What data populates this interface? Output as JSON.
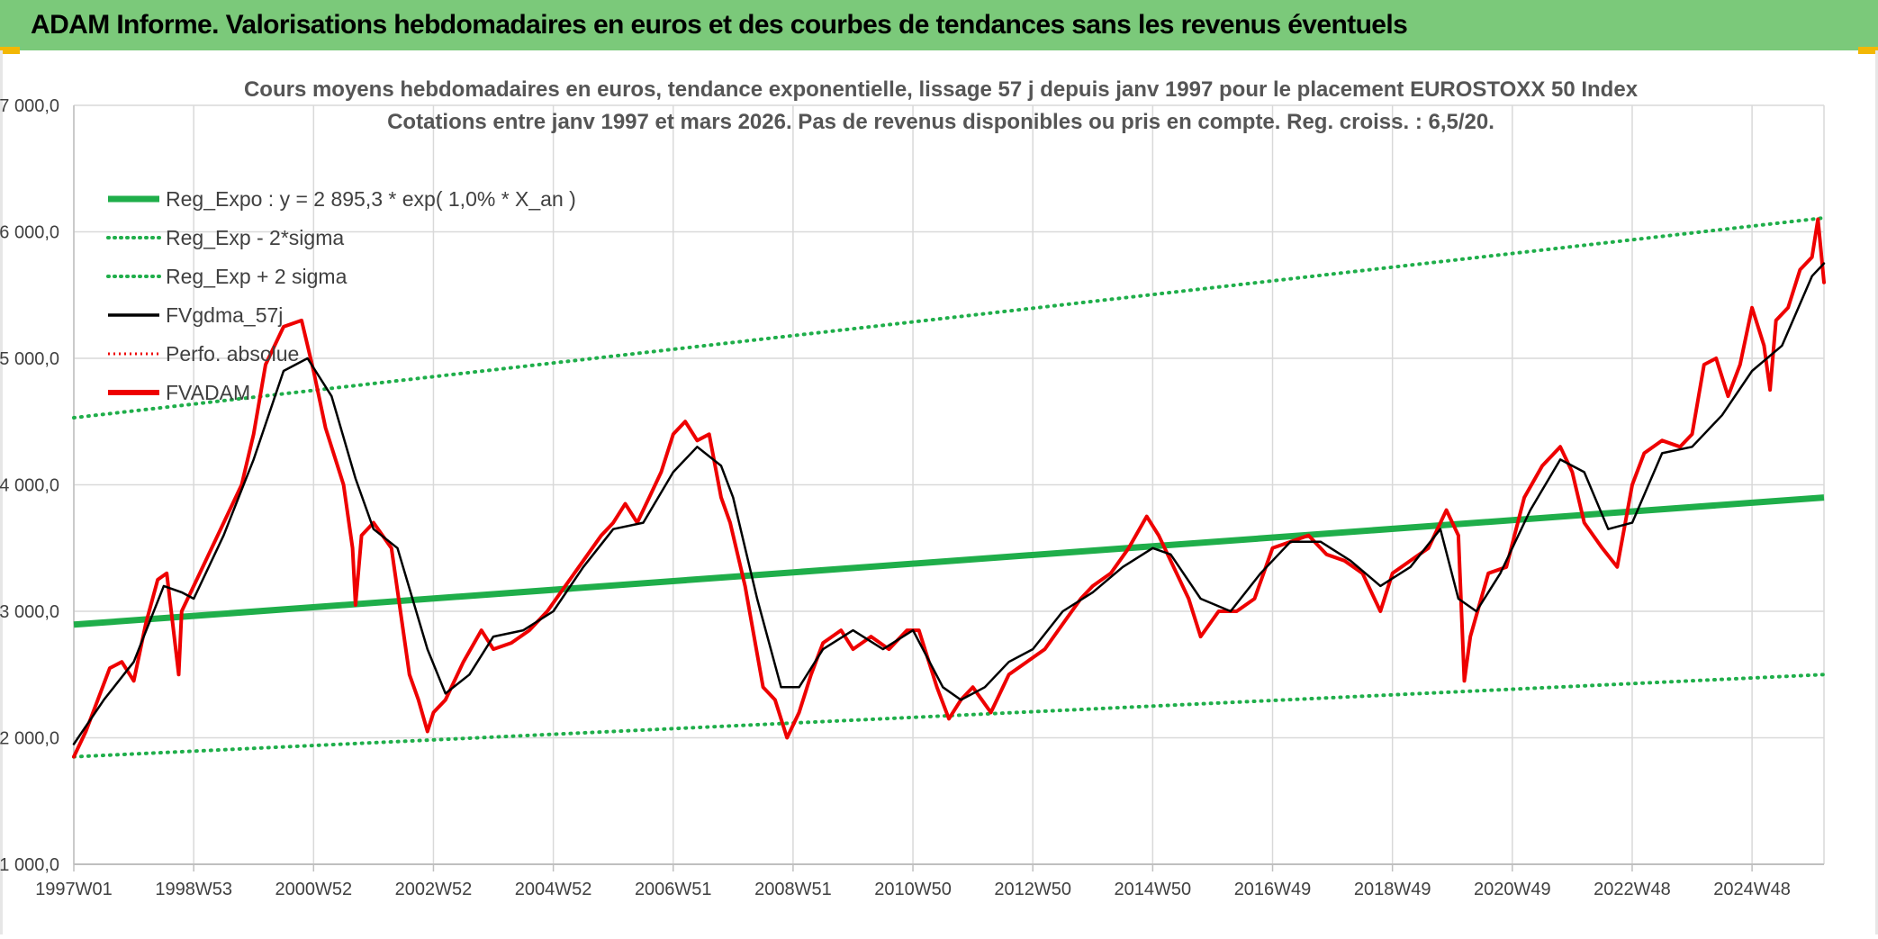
{
  "banner": {
    "title": "ADAM Informe. Valorisations hebdomadaires en euros et des courbes de tendances sans les revenus éventuels"
  },
  "colors": {
    "banner_bg": "#7bc97a",
    "corner_accent": "#f2b705",
    "trend_green": "#1fae4a",
    "dotted_green": "#1fae4a",
    "fvadam_red": "#ee0000",
    "fvgdma_black": "#000000",
    "perfo_red": "#ee0000",
    "grid": "#d9d9d9"
  },
  "chart_data": {
    "type": "line",
    "title_lines": [
      "Cours moyens hebdomadaires en euros, tendance exponentielle, lissage 57 j depuis janv 1997 pour le placement EUROSTOXX 50 Index",
      "Cotations entre janv 1997 et mars 2026. Pas de revenus disponibles ou pris en compte. Reg. croiss. : 6,5/20."
    ],
    "xlim": [
      1997.0,
      2026.2
    ],
    "ylim": [
      1000,
      7000
    ],
    "yticks": [
      1000,
      2000,
      3000,
      4000,
      5000,
      6000,
      7000
    ],
    "ytick_labels": [
      "1 000,0",
      "2 000,0",
      "3 000,0",
      "4 000,0",
      "5 000,0",
      "6 000,0",
      "7 000,0"
    ],
    "xtick_labels": [
      "1997W01",
      "1998W53",
      "2000W52",
      "2002W52",
      "2004W52",
      "2006W51",
      "2008W51",
      "2010W50",
      "2012W50",
      "2014W50",
      "2016W49",
      "2018W49",
      "2020W49",
      "2022W48",
      "2024W48"
    ],
    "xtick_positions": [
      1997.0,
      1999.0,
      2001.0,
      2003.0,
      2005.0,
      2007.0,
      2009.0,
      2011.0,
      2013.0,
      2015.0,
      2017.0,
      2019.0,
      2021.0,
      2023.0,
      2025.0
    ],
    "grid": true,
    "legend_position": "top-left",
    "legend": [
      {
        "label": "Reg_Expo : y = 2 895,3 * exp( 1,0% *  X_an )",
        "style": "solid-thick",
        "color": "#1fae4a"
      },
      {
        "label": "Reg_Exp - 2*sigma",
        "style": "dotted",
        "color": "#1fae4a"
      },
      {
        "label": "Reg_Exp + 2 sigma",
        "style": "dotted",
        "color": "#1fae4a"
      },
      {
        "label": "FVgdma_57j",
        "style": "solid",
        "color": "#000000"
      },
      {
        "label": "Perfo. absolue",
        "style": "dotted",
        "color": "#ee0000"
      },
      {
        "label": "FVADAM",
        "style": "solid-thick",
        "color": "#ee0000"
      }
    ],
    "series": [
      {
        "name": "Reg_Expo : y = 2 895,3 * exp( 1,0% *  X_an )",
        "x": [
          1997.0,
          2026.2
        ],
        "y": [
          2895,
          3900
        ]
      },
      {
        "name": "Reg_Exp - 2*sigma",
        "x": [
          1997.0,
          2026.2
        ],
        "y": [
          1850,
          2500
        ]
      },
      {
        "name": "Reg_Exp + 2 sigma",
        "x": [
          1997.0,
          2026.2
        ],
        "y": [
          4530,
          6110
        ]
      },
      {
        "name": "FVADAM",
        "x": [
          1997.0,
          1997.2,
          1997.4,
          1997.6,
          1997.8,
          1998.0,
          1998.2,
          1998.4,
          1998.55,
          1998.7,
          1998.75,
          1998.8,
          1999.0,
          1999.3,
          1999.6,
          1999.8,
          2000.0,
          2000.2,
          2000.5,
          2000.8,
          2001.0,
          2001.2,
          2001.5,
          2001.65,
          2001.7,
          2001.8,
          2002.0,
          2002.3,
          2002.6,
          2002.75,
          2002.9,
          2003.0,
          2003.2,
          2003.5,
          2003.8,
          2004.0,
          2004.3,
          2004.6,
          2004.9,
          2005.2,
          2005.5,
          2005.8,
          2006.0,
          2006.2,
          2006.4,
          2006.6,
          2006.8,
          2007.0,
          2007.2,
          2007.4,
          2007.6,
          2007.8,
          2007.95,
          2008.2,
          2008.5,
          2008.7,
          2008.9,
          2009.1,
          2009.3,
          2009.5,
          2009.8,
          2010.0,
          2010.3,
          2010.6,
          2010.9,
          2011.1,
          2011.4,
          2011.6,
          2011.8,
          2012.0,
          2012.3,
          2012.6,
          2012.9,
          2013.2,
          2013.5,
          2013.8,
          2014.0,
          2014.3,
          2014.6,
          2014.9,
          2015.1,
          2015.3,
          2015.6,
          2015.8,
          2016.1,
          2016.4,
          2016.7,
          2017.0,
          2017.3,
          2017.6,
          2017.9,
          2018.2,
          2018.5,
          2018.8,
          2019.0,
          2019.3,
          2019.6,
          2019.9,
          2020.1,
          2020.2,
          2020.3,
          2020.6,
          2020.9,
          2021.2,
          2021.5,
          2021.8,
          2022.0,
          2022.2,
          2022.5,
          2022.75,
          2023.0,
          2023.2,
          2023.5,
          2023.8,
          2024.0,
          2024.2,
          2024.4,
          2024.6,
          2024.8,
          2025.0,
          2025.2,
          2025.3,
          2025.4,
          2025.6,
          2025.8,
          2026.0,
          2026.1,
          2026.2
        ],
        "y": [
          1850,
          2050,
          2300,
          2550,
          2600,
          2450,
          2900,
          3250,
          3300,
          2700,
          2500,
          3000,
          3200,
          3500,
          3800,
          4000,
          4400,
          4950,
          5250,
          5300,
          4900,
          4450,
          4000,
          3500,
          3050,
          3600,
          3700,
          3500,
          2500,
          2300,
          2050,
          2200,
          2300,
          2600,
          2850,
          2700,
          2750,
          2850,
          3000,
          3200,
          3400,
          3600,
          3700,
          3850,
          3700,
          3900,
          4100,
          4400,
          4500,
          4350,
          4400,
          3900,
          3700,
          3200,
          2400,
          2300,
          2000,
          2200,
          2500,
          2750,
          2850,
          2700,
          2800,
          2700,
          2850,
          2850,
          2400,
          2150,
          2300,
          2400,
          2200,
          2500,
          2600,
          2700,
          2900,
          3100,
          3200,
          3300,
          3500,
          3750,
          3600,
          3400,
          3100,
          2800,
          3000,
          3000,
          3100,
          3500,
          3550,
          3600,
          3450,
          3400,
          3300,
          3000,
          3300,
          3400,
          3500,
          3800,
          3600,
          2450,
          2800,
          3300,
          3350,
          3900,
          4150,
          4300,
          4100,
          3700,
          3500,
          3350,
          4000,
          4250,
          4350,
          4300,
          4400,
          4950,
          5000,
          4700,
          4950,
          5400,
          5100,
          4750,
          5300,
          5400,
          5700,
          5800,
          6100,
          5600
        ]
      },
      {
        "name": "FVgdma_57j",
        "x": [
          1997.0,
          1997.5,
          1998.0,
          1998.5,
          1998.8,
          1999.0,
          1999.5,
          2000.0,
          2000.5,
          2000.9,
          2001.3,
          2001.7,
          2002.0,
          2002.4,
          2002.9,
          2003.2,
          2003.6,
          2004.0,
          2004.5,
          2005.0,
          2005.5,
          2006.0,
          2006.5,
          2007.0,
          2007.4,
          2007.8,
          2008.0,
          2008.4,
          2008.8,
          2009.1,
          2009.5,
          2010.0,
          2010.5,
          2011.0,
          2011.5,
          2011.8,
          2012.2,
          2012.6,
          2013.0,
          2013.5,
          2014.0,
          2014.5,
          2015.0,
          2015.3,
          2015.8,
          2016.3,
          2016.8,
          2017.3,
          2017.8,
          2018.3,
          2018.8,
          2019.3,
          2019.8,
          2020.1,
          2020.4,
          2020.8,
          2021.3,
          2021.8,
          2022.2,
          2022.6,
          2023.0,
          2023.5,
          2024.0,
          2024.5,
          2025.0,
          2025.5,
          2026.0,
          2026.2
        ],
        "y": [
          1950,
          2300,
          2600,
          3200,
          3150,
          3100,
          3600,
          4200,
          4900,
          5000,
          4700,
          4050,
          3650,
          3500,
          2700,
          2350,
          2500,
          2800,
          2850,
          3000,
          3350,
          3650,
          3700,
          4100,
          4300,
          4150,
          3900,
          3100,
          2400,
          2400,
          2700,
          2850,
          2700,
          2850,
          2400,
          2300,
          2400,
          2600,
          2700,
          3000,
          3150,
          3350,
          3500,
          3450,
          3100,
          3000,
          3300,
          3550,
          3550,
          3400,
          3200,
          3350,
          3650,
          3100,
          3000,
          3300,
          3800,
          4200,
          4100,
          3650,
          3700,
          4250,
          4300,
          4550,
          4900,
          5100,
          5650,
          5750
        ]
      }
    ]
  }
}
